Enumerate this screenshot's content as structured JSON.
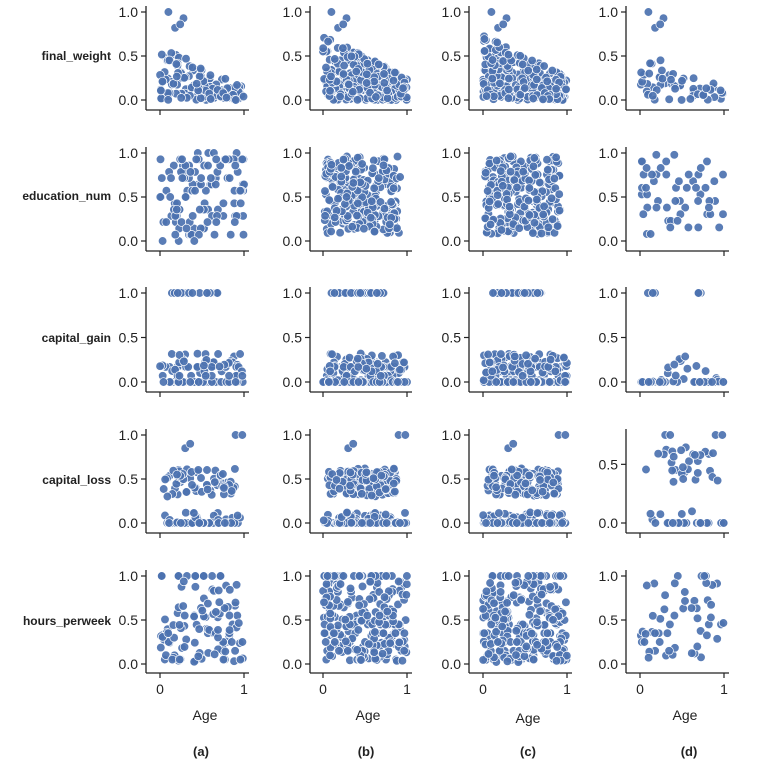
{
  "chart_data": {
    "type": "scatter",
    "figure_kind": "pair-plot grid",
    "x_variable": "Age",
    "x_label": "Age",
    "x_range": [
      0,
      1
    ],
    "x_ticks": [
      "0",
      "1"
    ],
    "y_variables": [
      "final_weight",
      "education_num",
      "capital_gain",
      "capital_loss",
      "hours_perweek"
    ],
    "y_ticks": [
      "0.0",
      "0.5",
      "1.0"
    ],
    "y_ticks_capital_loss_d": [
      "0.0",
      "0.5"
    ],
    "panels": [
      "(a)",
      "(b)",
      "(c)",
      "(d)"
    ],
    "color": "#4c72b0",
    "density_by_panel": {
      "(a)": "medium",
      "(b)": "very dense",
      "(c)": "very dense",
      "(d)": "sparse"
    },
    "shape_notes": {
      "final_weight": "values fall off as Age increases; max near 1.0 at young ages",
      "education_num": "spread over the full 0-1 range at all ages",
      "capital_gain": "mostly near 0.0-0.4 with a horizontal band at 1.0",
      "capital_loss": "band at 0.0 plus a cluster around 0.3-0.7",
      "hours_perweek": "spread over 0-1, densest between 0.2 and 0.6"
    }
  }
}
